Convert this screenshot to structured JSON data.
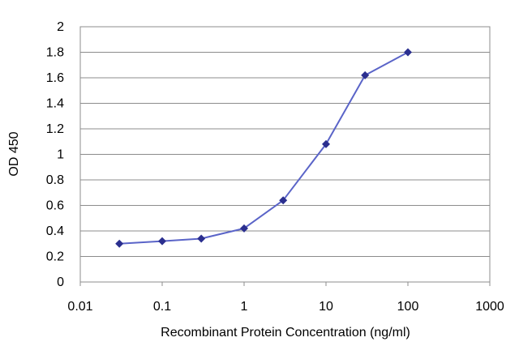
{
  "chart_data": {
    "type": "line",
    "title": "",
    "xlabel": "Recombinant Protein Concentration (ng/ml)",
    "ylabel": "OD 450",
    "x_scale": "log",
    "xlim": [
      0.01,
      1000
    ],
    "ylim": [
      0,
      2
    ],
    "x_ticks": [
      "0.01",
      "0.1",
      "1",
      "10",
      "100",
      "1000"
    ],
    "y_ticks": [
      "0",
      "0.2",
      "0.4",
      "0.6",
      "0.8",
      "1",
      "1.2",
      "1.4",
      "1.6",
      "1.8",
      "2"
    ],
    "grid": "horizontal",
    "legend": "none",
    "series": [
      {
        "color": "#2b2f8f",
        "x": [
          0.03,
          0.1,
          0.3,
          1,
          3,
          10,
          30,
          100
        ],
        "y": [
          0.3,
          0.32,
          0.34,
          0.42,
          0.64,
          1.08,
          1.62,
          1.8
        ]
      }
    ]
  }
}
